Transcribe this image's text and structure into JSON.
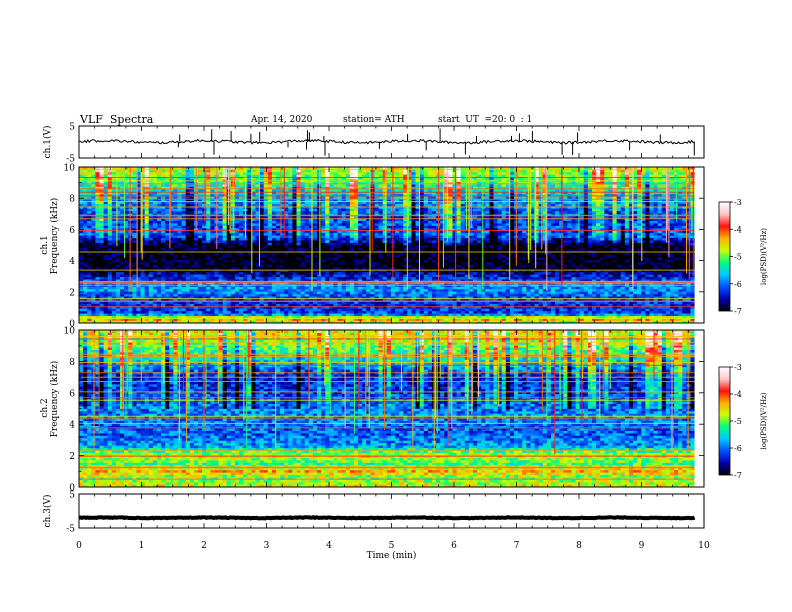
{
  "header": {
    "title": "VLF  Spectra",
    "date": "Apr. 14, 2020",
    "station": "station= ATH",
    "start_label": "start  UT  =",
    "start_value": "20: 0  : 1"
  },
  "chart_data": [
    {
      "type": "line",
      "panel": "ch1-waveform",
      "ylabel": "ch.1(V)",
      "ylim": [
        -5,
        5
      ],
      "ytick_labels": [
        "5",
        "-5"
      ],
      "xlim": [
        0,
        10
      ],
      "series_color": "#000000",
      "baseline": 0.1,
      "noise_amplitude": 0.8,
      "spike_count": 28
    },
    {
      "type": "heatmap",
      "panel": "ch1-spectrogram",
      "ylabel": "Frequency  (kHz)",
      "ylabel_prefix": "ch.1",
      "ylim": [
        0,
        10
      ],
      "ytick_labels": [
        "0",
        "2",
        "4",
        "6",
        "8",
        "10"
      ],
      "xlim": [
        0,
        10
      ],
      "data_end_min": 9.85,
      "level_profile": [
        {
          "f": 0.0,
          "level": -5.0
        },
        {
          "f": 0.3,
          "level": -4.2
        },
        {
          "f": 0.6,
          "level": -6.2
        },
        {
          "f": 1.4,
          "level": -6.3
        },
        {
          "f": 2.2,
          "level": -5.8
        },
        {
          "f": 3.0,
          "level": -6.4
        },
        {
          "f": 3.5,
          "level": -7.0
        },
        {
          "f": 5.0,
          "level": -7.0
        },
        {
          "f": 5.6,
          "level": -6.1
        },
        {
          "f": 6.8,
          "level": -6.2
        },
        {
          "f": 8.0,
          "level": -5.8
        },
        {
          "f": 9.0,
          "level": -5.2
        },
        {
          "f": 10.0,
          "level": -4.6
        }
      ],
      "colorbar": {
        "range": [
          -7,
          -3
        ],
        "tick_labels": [
          "-3",
          "-4",
          "-5",
          "-6",
          "-7"
        ],
        "label": "log(PSD)(V²/Hz)",
        "colors": [
          "#000000",
          "#0000b0",
          "#0050ff",
          "#00c8ff",
          "#00ff80",
          "#c8ff00",
          "#ffb000",
          "#ff1010",
          "#ffc8c8",
          "#ffffff"
        ]
      }
    },
    {
      "type": "heatmap",
      "panel": "ch2-spectrogram",
      "ylabel": "Frequency  (kHz)",
      "ylabel_prefix": "ch.2",
      "ylim": [
        0,
        10
      ],
      "ytick_labels": [
        "0",
        "2",
        "4",
        "6",
        "8",
        "10"
      ],
      "xlim": [
        0,
        10
      ],
      "data_end_min": 9.85,
      "level_profile": [
        {
          "f": 0.0,
          "level": -4.6
        },
        {
          "f": 0.6,
          "level": -5.0
        },
        {
          "f": 1.0,
          "level": -4.4
        },
        {
          "f": 1.5,
          "level": -5.2
        },
        {
          "f": 2.0,
          "level": -4.6
        },
        {
          "f": 2.6,
          "level": -5.8
        },
        {
          "f": 3.4,
          "level": -6.1
        },
        {
          "f": 4.6,
          "level": -5.9
        },
        {
          "f": 5.6,
          "level": -6.1
        },
        {
          "f": 7.0,
          "level": -6.4
        },
        {
          "f": 8.0,
          "level": -5.6
        },
        {
          "f": 9.0,
          "level": -5.0
        },
        {
          "f": 10.0,
          "level": -4.5
        }
      ],
      "colorbar": {
        "range": [
          -7,
          -3
        ],
        "tick_labels": [
          "-3",
          "-4",
          "-5",
          "-6",
          "-7"
        ],
        "label": "log(PSD)(V²/Hz)"
      }
    },
    {
      "type": "line",
      "panel": "ch3-waveform",
      "ylabel": "ch.3(V)",
      "ylim": [
        -5,
        5
      ],
      "ytick_labels": [
        "5",
        "-5"
      ],
      "xlim": [
        0,
        10
      ],
      "series_color": "#000000",
      "baseline": -2.0,
      "noise_amplitude": 0.2
    }
  ],
  "x_axis": {
    "label": "Time  (min)",
    "tick_labels": [
      "0",
      "1",
      "2",
      "3",
      "4",
      "5",
      "6",
      "7",
      "8",
      "9",
      "10"
    ]
  }
}
